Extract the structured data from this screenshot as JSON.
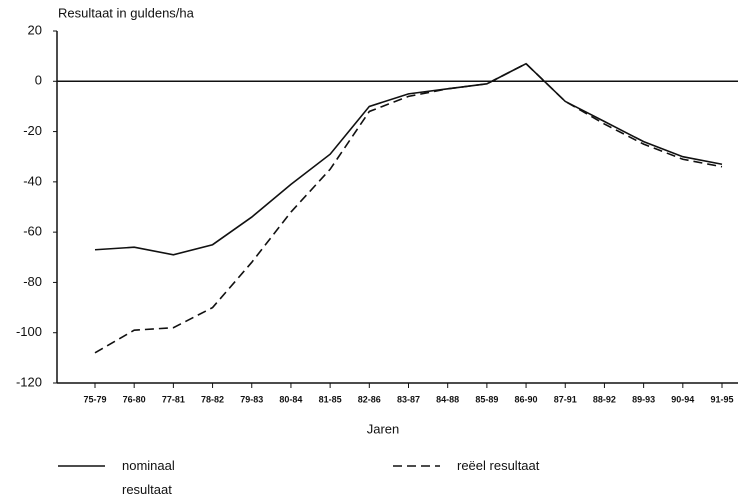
{
  "chart_data": {
    "type": "line",
    "y_label": "Resultaat in guldens/ha",
    "x_label": "Jaren",
    "categories": [
      "75-79",
      "76-80",
      "77-81",
      "78-82",
      "79-83",
      "80-84",
      "81-85",
      "82-86",
      "83-87",
      "84-88",
      "85-89",
      "86-90",
      "87-91",
      "88-92",
      "89-93",
      "90-94",
      "91-95"
    ],
    "series": [
      {
        "name": "nominaal resultaat",
        "color": "#111111",
        "linestyle": "solid",
        "values": [
          -67,
          -66,
          -69,
          -65,
          -54,
          -41,
          -29,
          -10,
          -5,
          -3,
          -1,
          7,
          -8,
          -16,
          -24,
          -30,
          -33
        ]
      },
      {
        "name": "reëel resultaat",
        "color": "#111111",
        "linestyle": "dashed",
        "values": [
          -108,
          -99,
          -98,
          -90,
          -72,
          -52,
          -35,
          -12,
          -6,
          -3,
          -1,
          7,
          -8,
          -17,
          -25,
          -31,
          -34
        ]
      }
    ],
    "ylim": [
      -120,
      20
    ],
    "yticks": [
      20,
      0,
      -20,
      -40,
      -60,
      -80,
      -100,
      -120
    ],
    "zero_line": true
  }
}
